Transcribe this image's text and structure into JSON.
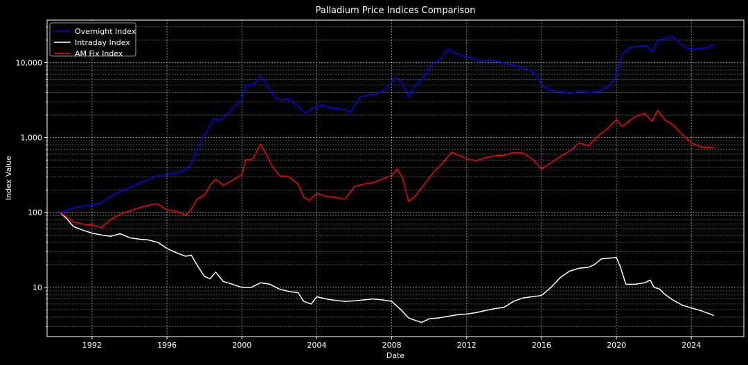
{
  "chart_data": {
    "type": "line",
    "title": "Palladium Price Indices Comparison",
    "xlabel": "Date",
    "ylabel": "Index Value",
    "y_scale": "log",
    "xlim": [
      1989.6,
      2026.8
    ],
    "ylim": [
      2.2,
      37000
    ],
    "x_ticks": [
      1992,
      1996,
      2000,
      2004,
      2008,
      2012,
      2016,
      2020,
      2024
    ],
    "x_tick_labels": [
      "1992",
      "1996",
      "2000",
      "2004",
      "2008",
      "2012",
      "2016",
      "2020",
      "2024"
    ],
    "y_ticks": [
      10,
      100,
      1000,
      10000
    ],
    "y_tick_labels": [
      "10",
      "100",
      "1,000",
      "10,000"
    ],
    "grid": true,
    "legend_position": "top-left",
    "background": "#000000",
    "series": [
      {
        "name": "Overnight Index",
        "color": "#0000ff",
        "points": [
          [
            1990.3,
            100
          ],
          [
            1991.0,
            115
          ],
          [
            1991.5,
            122
          ],
          [
            1992.0,
            125
          ],
          [
            1992.5,
            135
          ],
          [
            1993.0,
            165
          ],
          [
            1993.5,
            190
          ],
          [
            1994.0,
            215
          ],
          [
            1994.5,
            245
          ],
          [
            1995.0,
            275
          ],
          [
            1995.5,
            310
          ],
          [
            1996.0,
            320
          ],
          [
            1996.5,
            340
          ],
          [
            1997.0,
            370
          ],
          [
            1997.3,
            450
          ],
          [
            1997.6,
            700
          ],
          [
            1997.9,
            1000
          ],
          [
            1998.2,
            1300
          ],
          [
            1998.5,
            1800
          ],
          [
            1998.8,
            1700
          ],
          [
            1999.2,
            2000
          ],
          [
            1999.6,
            2600
          ],
          [
            2000.0,
            3200
          ],
          [
            2000.2,
            5000
          ],
          [
            2000.6,
            5000
          ],
          [
            2001.0,
            6600
          ],
          [
            2001.3,
            5200
          ],
          [
            2001.7,
            3600
          ],
          [
            2002.0,
            3200
          ],
          [
            2002.5,
            3300
          ],
          [
            2003.0,
            2600
          ],
          [
            2003.4,
            2100
          ],
          [
            2003.8,
            2500
          ],
          [
            2004.3,
            2700
          ],
          [
            2004.8,
            2500
          ],
          [
            2005.3,
            2400
          ],
          [
            2005.8,
            2200
          ],
          [
            2006.3,
            3500
          ],
          [
            2006.8,
            3700
          ],
          [
            2007.3,
            3900
          ],
          [
            2007.8,
            4700
          ],
          [
            2008.2,
            6400
          ],
          [
            2008.5,
            5600
          ],
          [
            2008.9,
            3500
          ],
          [
            2009.3,
            5000
          ],
          [
            2009.8,
            7000
          ],
          [
            2010.2,
            9800
          ],
          [
            2010.6,
            11000
          ],
          [
            2011.0,
            15000
          ],
          [
            2011.4,
            13500
          ],
          [
            2011.8,
            12500
          ],
          [
            2012.3,
            11500
          ],
          [
            2012.8,
            10500
          ],
          [
            2013.3,
            11000
          ],
          [
            2013.8,
            10200
          ],
          [
            2014.3,
            9500
          ],
          [
            2014.8,
            8800
          ],
          [
            2015.3,
            8200
          ],
          [
            2015.7,
            7000
          ],
          [
            2016.0,
            5000
          ],
          [
            2016.5,
            4300
          ],
          [
            2017.0,
            4100
          ],
          [
            2017.5,
            3900
          ],
          [
            2018.0,
            4200
          ],
          [
            2018.5,
            4000
          ],
          [
            2019.0,
            4100
          ],
          [
            2019.5,
            4700
          ],
          [
            2019.8,
            5500
          ],
          [
            2020.1,
            8000
          ],
          [
            2020.3,
            13000
          ],
          [
            2020.7,
            16000
          ],
          [
            2021.2,
            16500
          ],
          [
            2021.6,
            17000
          ],
          [
            2021.9,
            14000
          ],
          [
            2022.2,
            20000
          ],
          [
            2022.6,
            21000
          ],
          [
            2023.0,
            22500
          ],
          [
            2023.4,
            18000
          ],
          [
            2023.8,
            15500
          ],
          [
            2024.3,
            15000
          ],
          [
            2024.8,
            16000
          ],
          [
            2025.2,
            17500
          ]
        ]
      },
      {
        "name": "Intraday Index",
        "color": "#ffffff",
        "points": [
          [
            1990.3,
            100
          ],
          [
            1990.7,
            80
          ],
          [
            1991.0,
            65
          ],
          [
            1991.5,
            58
          ],
          [
            1992.0,
            53
          ],
          [
            1992.5,
            50
          ],
          [
            1993.0,
            48
          ],
          [
            1993.5,
            52
          ],
          [
            1994.0,
            46
          ],
          [
            1994.5,
            44
          ],
          [
            1995.0,
            43
          ],
          [
            1995.5,
            40
          ],
          [
            1996.0,
            33
          ],
          [
            1996.5,
            29
          ],
          [
            1997.0,
            26
          ],
          [
            1997.3,
            27
          ],
          [
            1997.6,
            20
          ],
          [
            1998.0,
            14
          ],
          [
            1998.3,
            13
          ],
          [
            1998.6,
            16
          ],
          [
            1999.0,
            12
          ],
          [
            1999.5,
            11
          ],
          [
            2000.0,
            10
          ],
          [
            2000.5,
            10
          ],
          [
            2001.0,
            11.5
          ],
          [
            2001.5,
            11
          ],
          [
            2002.0,
            9.5
          ],
          [
            2002.5,
            8.8
          ],
          [
            2003.0,
            8.5
          ],
          [
            2003.3,
            6.5
          ],
          [
            2003.7,
            6.0
          ],
          [
            2004.0,
            7.5
          ],
          [
            2004.5,
            7.0
          ],
          [
            2005.0,
            6.7
          ],
          [
            2005.5,
            6.5
          ],
          [
            2006.0,
            6.6
          ],
          [
            2006.5,
            6.8
          ],
          [
            2007.0,
            7.0
          ],
          [
            2007.5,
            6.8
          ],
          [
            2008.0,
            6.5
          ],
          [
            2008.5,
            5.0
          ],
          [
            2008.9,
            3.9
          ],
          [
            2009.3,
            3.6
          ],
          [
            2009.6,
            3.4
          ],
          [
            2010.0,
            3.8
          ],
          [
            2010.5,
            3.9
          ],
          [
            2011.0,
            4.1
          ],
          [
            2011.5,
            4.3
          ],
          [
            2012.0,
            4.4
          ],
          [
            2012.5,
            4.6
          ],
          [
            2013.0,
            4.9
          ],
          [
            2013.5,
            5.2
          ],
          [
            2014.0,
            5.4
          ],
          [
            2014.5,
            6.5
          ],
          [
            2015.0,
            7.2
          ],
          [
            2015.5,
            7.5
          ],
          [
            2016.0,
            7.8
          ],
          [
            2016.5,
            10
          ],
          [
            2017.0,
            13.5
          ],
          [
            2017.5,
            16.5
          ],
          [
            2018.0,
            18
          ],
          [
            2018.5,
            18.5
          ],
          [
            2018.8,
            20
          ],
          [
            2019.2,
            24
          ],
          [
            2019.6,
            24.5
          ],
          [
            2020.0,
            25
          ],
          [
            2020.2,
            19
          ],
          [
            2020.5,
            11
          ],
          [
            2021.0,
            11
          ],
          [
            2021.5,
            11.5
          ],
          [
            2021.8,
            12.5
          ],
          [
            2022.0,
            10
          ],
          [
            2022.3,
            9.5
          ],
          [
            2022.6,
            8.0
          ],
          [
            2023.0,
            6.8
          ],
          [
            2023.5,
            5.8
          ],
          [
            2024.0,
            5.3
          ],
          [
            2024.5,
            4.9
          ],
          [
            2025.2,
            4.2
          ]
        ]
      },
      {
        "name": "AM Fix Index",
        "color": "#ff0000",
        "points": [
          [
            1990.3,
            100
          ],
          [
            1990.7,
            85
          ],
          [
            1991.0,
            75
          ],
          [
            1991.5,
            70
          ],
          [
            1992.0,
            68
          ],
          [
            1992.5,
            63
          ],
          [
            1993.0,
            80
          ],
          [
            1993.5,
            95
          ],
          [
            1994.0,
            105
          ],
          [
            1994.5,
            115
          ],
          [
            1995.0,
            125
          ],
          [
            1995.5,
            130
          ],
          [
            1996.0,
            108
          ],
          [
            1996.5,
            104
          ],
          [
            1997.0,
            92
          ],
          [
            1997.3,
            110
          ],
          [
            1997.6,
            150
          ],
          [
            1998.0,
            170
          ],
          [
            1998.3,
            230
          ],
          [
            1998.6,
            280
          ],
          [
            1999.0,
            230
          ],
          [
            1999.5,
            270
          ],
          [
            2000.0,
            320
          ],
          [
            2000.2,
            500
          ],
          [
            2000.6,
            520
          ],
          [
            2001.0,
            820
          ],
          [
            2001.3,
            600
          ],
          [
            2001.6,
            420
          ],
          [
            2002.0,
            310
          ],
          [
            2002.5,
            300
          ],
          [
            2003.0,
            240
          ],
          [
            2003.3,
            160
          ],
          [
            2003.6,
            145
          ],
          [
            2004.0,
            180
          ],
          [
            2004.5,
            165
          ],
          [
            2005.0,
            160
          ],
          [
            2005.5,
            150
          ],
          [
            2006.0,
            220
          ],
          [
            2006.5,
            240
          ],
          [
            2007.0,
            250
          ],
          [
            2007.5,
            280
          ],
          [
            2008.0,
            310
          ],
          [
            2008.3,
            380
          ],
          [
            2008.6,
            280
          ],
          [
            2008.9,
            140
          ],
          [
            2009.3,
            170
          ],
          [
            2009.8,
            250
          ],
          [
            2010.3,
            360
          ],
          [
            2010.8,
            480
          ],
          [
            2011.2,
            640
          ],
          [
            2011.6,
            580
          ],
          [
            2012.0,
            520
          ],
          [
            2012.5,
            490
          ],
          [
            2013.0,
            540
          ],
          [
            2013.5,
            570
          ],
          [
            2014.0,
            580
          ],
          [
            2014.5,
            630
          ],
          [
            2015.0,
            620
          ],
          [
            2015.5,
            520
          ],
          [
            2016.0,
            380
          ],
          [
            2016.5,
            460
          ],
          [
            2017.0,
            560
          ],
          [
            2017.5,
            660
          ],
          [
            2018.0,
            850
          ],
          [
            2018.5,
            780
          ],
          [
            2019.0,
            1050
          ],
          [
            2019.5,
            1300
          ],
          [
            2020.0,
            1750
          ],
          [
            2020.3,
            1400
          ],
          [
            2020.6,
            1600
          ],
          [
            2021.0,
            1900
          ],
          [
            2021.5,
            2100
          ],
          [
            2021.9,
            1650
          ],
          [
            2022.2,
            2300
          ],
          [
            2022.6,
            1700
          ],
          [
            2023.0,
            1500
          ],
          [
            2023.5,
            1100
          ],
          [
            2024.0,
            850
          ],
          [
            2024.5,
            750
          ],
          [
            2025.2,
            740
          ]
        ]
      }
    ]
  }
}
